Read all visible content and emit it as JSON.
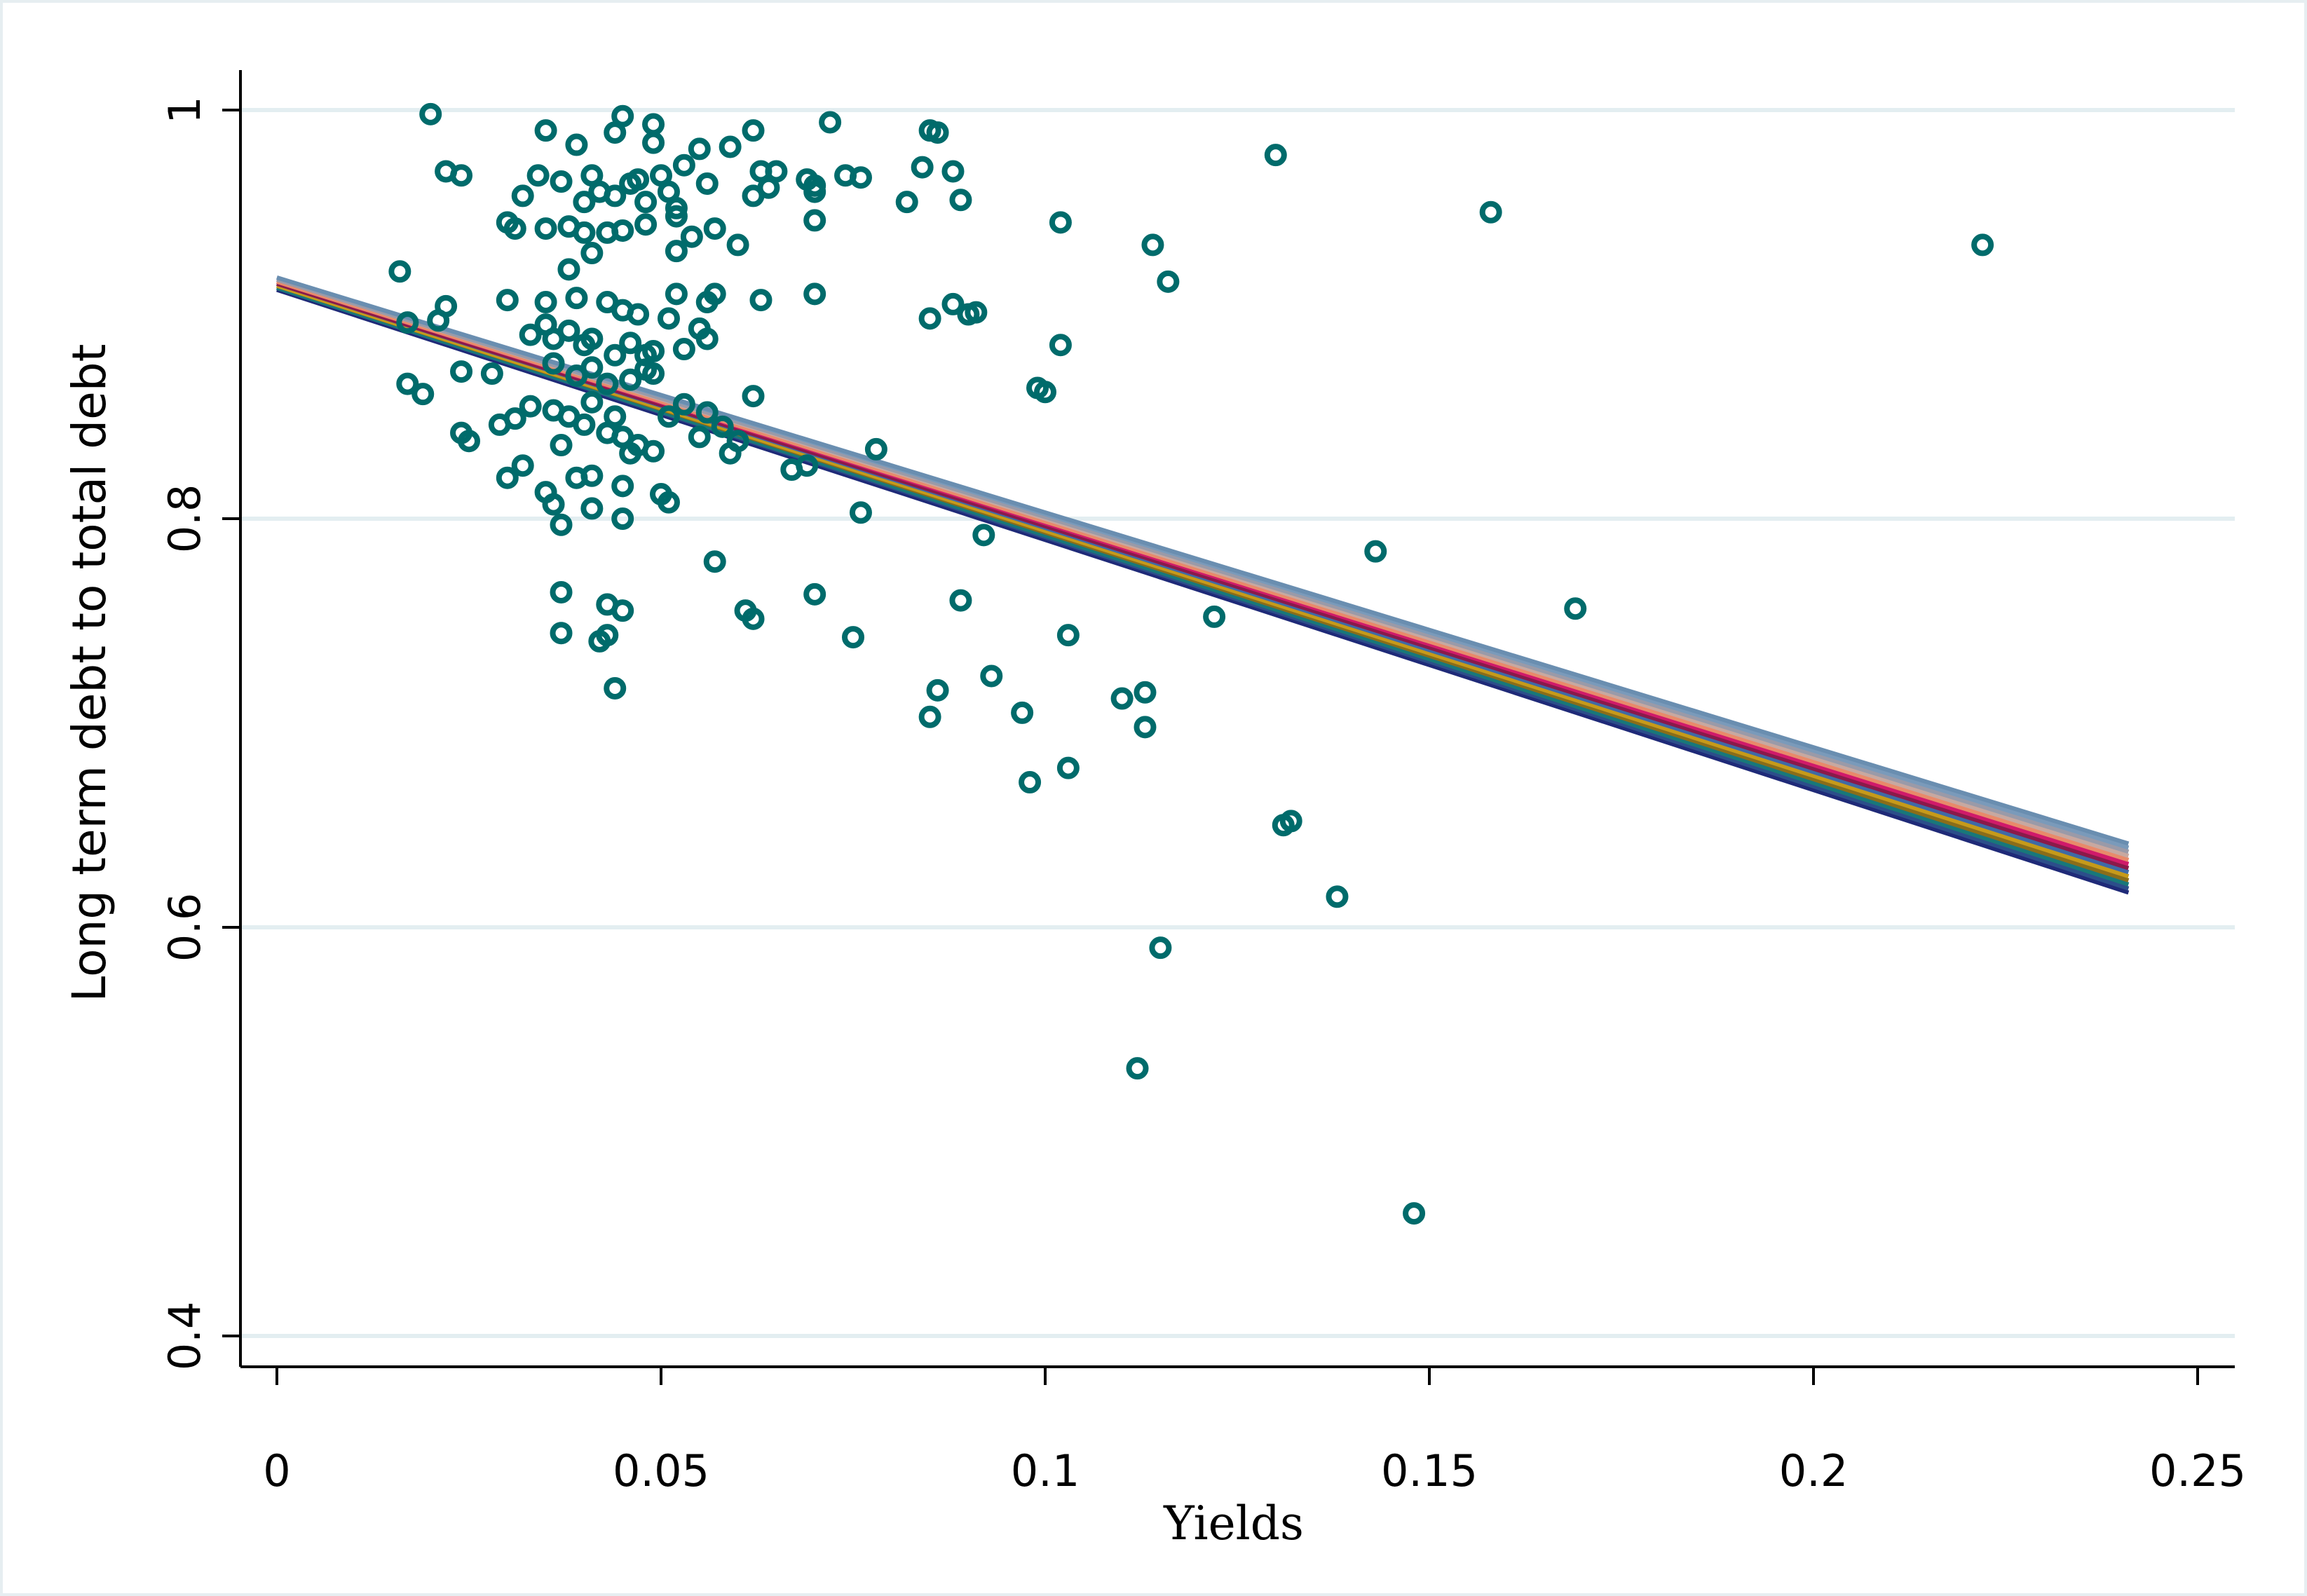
{
  "chart_data": {
    "type": "scatter",
    "title": "",
    "xlabel": "Yields",
    "ylabel": "Long term debt to total debt",
    "xlim": [
      -0.005,
      0.255
    ],
    "ylim": [
      0.385,
      1.005
    ],
    "xticks": [
      0,
      0.05,
      0.1,
      0.15,
      0.2,
      0.25
    ],
    "xtick_labels": [
      "0",
      "0.05",
      "0.1",
      "0.15",
      "0.2",
      "0.25"
    ],
    "yticks": [
      0.4,
      0.6,
      0.8,
      1
    ],
    "ytick_labels": [
      "0.4",
      "0.6",
      "0.8",
      "1"
    ],
    "grid": "horizontal",
    "marker_color": "#006b6b",
    "grid_color": "#e3eef1",
    "points": [
      [
        0.02,
        0.998
      ],
      [
        0.045,
        0.997
      ],
      [
        0.049,
        0.993
      ],
      [
        0.072,
        0.994
      ],
      [
        0.035,
        0.99
      ],
      [
        0.044,
        0.989
      ],
      [
        0.062,
        0.99
      ],
      [
        0.085,
        0.99
      ],
      [
        0.086,
        0.989
      ],
      [
        0.039,
        0.983
      ],
      [
        0.049,
        0.984
      ],
      [
        0.055,
        0.981
      ],
      [
        0.059,
        0.982
      ],
      [
        0.13,
        0.978
      ],
      [
        0.022,
        0.97
      ],
      [
        0.024,
        0.968
      ],
      [
        0.034,
        0.968
      ],
      [
        0.037,
        0.965
      ],
      [
        0.041,
        0.968
      ],
      [
        0.046,
        0.964
      ],
      [
        0.047,
        0.966
      ],
      [
        0.05,
        0.968
      ],
      [
        0.053,
        0.973
      ],
      [
        0.056,
        0.964
      ],
      [
        0.063,
        0.97
      ],
      [
        0.065,
        0.97
      ],
      [
        0.069,
        0.966
      ],
      [
        0.07,
        0.963
      ],
      [
        0.074,
        0.968
      ],
      [
        0.076,
        0.967
      ],
      [
        0.084,
        0.972
      ],
      [
        0.088,
        0.97
      ],
      [
        0.032,
        0.958
      ],
      [
        0.04,
        0.955
      ],
      [
        0.042,
        0.96
      ],
      [
        0.044,
        0.958
      ],
      [
        0.048,
        0.955
      ],
      [
        0.051,
        0.96
      ],
      [
        0.052,
        0.952
      ],
      [
        0.062,
        0.958
      ],
      [
        0.064,
        0.962
      ],
      [
        0.07,
        0.96
      ],
      [
        0.082,
        0.955
      ],
      [
        0.089,
        0.956
      ],
      [
        0.158,
        0.95
      ],
      [
        0.03,
        0.945
      ],
      [
        0.031,
        0.942
      ],
      [
        0.035,
        0.942
      ],
      [
        0.038,
        0.943
      ],
      [
        0.04,
        0.94
      ],
      [
        0.043,
        0.94
      ],
      [
        0.045,
        0.941
      ],
      [
        0.048,
        0.944
      ],
      [
        0.052,
        0.948
      ],
      [
        0.054,
        0.938
      ],
      [
        0.057,
        0.942
      ],
      [
        0.06,
        0.934
      ],
      [
        0.07,
        0.946
      ],
      [
        0.102,
        0.945
      ],
      [
        0.114,
        0.934
      ],
      [
        0.222,
        0.934
      ],
      [
        0.016,
        0.921
      ],
      [
        0.038,
        0.922
      ],
      [
        0.041,
        0.93
      ],
      [
        0.052,
        0.931
      ],
      [
        0.116,
        0.916
      ],
      [
        0.022,
        0.904
      ],
      [
        0.03,
        0.907
      ],
      [
        0.035,
        0.906
      ],
      [
        0.039,
        0.908
      ],
      [
        0.043,
        0.906
      ],
      [
        0.045,
        0.902
      ],
      [
        0.047,
        0.9
      ],
      [
        0.051,
        0.898
      ],
      [
        0.052,
        0.91
      ],
      [
        0.056,
        0.906
      ],
      [
        0.057,
        0.91
      ],
      [
        0.063,
        0.907
      ],
      [
        0.07,
        0.91
      ],
      [
        0.085,
        0.898
      ],
      [
        0.088,
        0.905
      ],
      [
        0.09,
        0.9
      ],
      [
        0.091,
        0.901
      ],
      [
        0.017,
        0.896
      ],
      [
        0.021,
        0.897
      ],
      [
        0.033,
        0.89
      ],
      [
        0.035,
        0.895
      ],
      [
        0.036,
        0.888
      ],
      [
        0.038,
        0.892
      ],
      [
        0.04,
        0.885
      ],
      [
        0.041,
        0.888
      ],
      [
        0.044,
        0.88
      ],
      [
        0.046,
        0.886
      ],
      [
        0.048,
        0.88
      ],
      [
        0.049,
        0.882
      ],
      [
        0.053,
        0.883
      ],
      [
        0.055,
        0.893
      ],
      [
        0.056,
        0.888
      ],
      [
        0.102,
        0.885
      ],
      [
        0.017,
        0.866
      ],
      [
        0.019,
        0.861
      ],
      [
        0.024,
        0.872
      ],
      [
        0.028,
        0.871
      ],
      [
        0.036,
        0.876
      ],
      [
        0.039,
        0.87
      ],
      [
        0.041,
        0.874
      ],
      [
        0.043,
        0.866
      ],
      [
        0.046,
        0.868
      ],
      [
        0.048,
        0.873
      ],
      [
        0.049,
        0.871
      ],
      [
        0.062,
        0.86
      ],
      [
        0.099,
        0.864
      ],
      [
        0.1,
        0.862
      ],
      [
        0.024,
        0.842
      ],
      [
        0.025,
        0.838
      ],
      [
        0.029,
        0.846
      ],
      [
        0.031,
        0.849
      ],
      [
        0.033,
        0.855
      ],
      [
        0.036,
        0.853
      ],
      [
        0.037,
        0.836
      ],
      [
        0.038,
        0.85
      ],
      [
        0.04,
        0.846
      ],
      [
        0.041,
        0.857
      ],
      [
        0.043,
        0.842
      ],
      [
        0.044,
        0.85
      ],
      [
        0.045,
        0.84
      ],
      [
        0.046,
        0.832
      ],
      [
        0.047,
        0.836
      ],
      [
        0.049,
        0.833
      ],
      [
        0.051,
        0.85
      ],
      [
        0.053,
        0.856
      ],
      [
        0.055,
        0.84
      ],
      [
        0.056,
        0.852
      ],
      [
        0.058,
        0.845
      ],
      [
        0.059,
        0.832
      ],
      [
        0.06,
        0.838
      ],
      [
        0.067,
        0.824
      ],
      [
        0.069,
        0.826
      ],
      [
        0.078,
        0.834
      ],
      [
        0.03,
        0.82
      ],
      [
        0.032,
        0.826
      ],
      [
        0.035,
        0.813
      ],
      [
        0.036,
        0.807
      ],
      [
        0.039,
        0.82
      ],
      [
        0.041,
        0.821
      ],
      [
        0.045,
        0.816
      ],
      [
        0.05,
        0.812
      ],
      [
        0.051,
        0.808
      ],
      [
        0.037,
        0.797
      ],
      [
        0.041,
        0.805
      ],
      [
        0.045,
        0.8
      ],
      [
        0.076,
        0.803
      ],
      [
        0.092,
        0.792
      ],
      [
        0.057,
        0.779
      ],
      [
        0.143,
        0.784
      ],
      [
        0.037,
        0.764
      ],
      [
        0.043,
        0.758
      ],
      [
        0.045,
        0.755
      ],
      [
        0.061,
        0.755
      ],
      [
        0.062,
        0.751
      ],
      [
        0.07,
        0.763
      ],
      [
        0.089,
        0.76
      ],
      [
        0.122,
        0.752
      ],
      [
        0.169,
        0.756
      ],
      [
        0.037,
        0.744
      ],
      [
        0.042,
        0.74
      ],
      [
        0.043,
        0.743
      ],
      [
        0.075,
        0.742
      ],
      [
        0.103,
        0.743
      ],
      [
        0.093,
        0.723
      ],
      [
        0.044,
        0.717
      ],
      [
        0.086,
        0.716
      ],
      [
        0.11,
        0.712
      ],
      [
        0.113,
        0.715
      ],
      [
        0.085,
        0.703
      ],
      [
        0.097,
        0.705
      ],
      [
        0.113,
        0.698
      ],
      [
        0.098,
        0.671
      ],
      [
        0.103,
        0.678
      ],
      [
        0.131,
        0.65
      ],
      [
        0.132,
        0.652
      ],
      [
        0.138,
        0.615
      ],
      [
        0.115,
        0.59
      ],
      [
        0.112,
        0.531
      ],
      [
        0.148,
        0.46
      ]
    ],
    "fitted_lines": {
      "x_range": [
        0,
        0.241
      ],
      "series": [
        {
          "y0": 0.912,
          "y1": 0.617,
          "color": "#1f2a78"
        },
        {
          "y0": 0.913,
          "y1": 0.619,
          "color": "#2c4e8a"
        },
        {
          "y0": 0.913,
          "y1": 0.621,
          "color": "#18787a"
        },
        {
          "y0": 0.914,
          "y1": 0.623,
          "color": "#8a6d1a"
        },
        {
          "y0": 0.914,
          "y1": 0.625,
          "color": "#c69a1a"
        },
        {
          "y0": 0.915,
          "y1": 0.627,
          "color": "#3f6aa6"
        },
        {
          "y0": 0.915,
          "y1": 0.629,
          "color": "#8a1a4a"
        },
        {
          "y0": 0.916,
          "y1": 0.631,
          "color": "#d01a6a"
        },
        {
          "y0": 0.916,
          "y1": 0.633,
          "color": "#e88a6a"
        },
        {
          "y0": 0.917,
          "y1": 0.635,
          "color": "#c8a8a0"
        },
        {
          "y0": 0.917,
          "y1": 0.637,
          "color": "#9a9aa8"
        },
        {
          "y0": 0.918,
          "y1": 0.639,
          "color": "#7a9aba"
        },
        {
          "y0": 0.918,
          "y1": 0.641,
          "color": "#6a8eb0"
        }
      ]
    }
  }
}
